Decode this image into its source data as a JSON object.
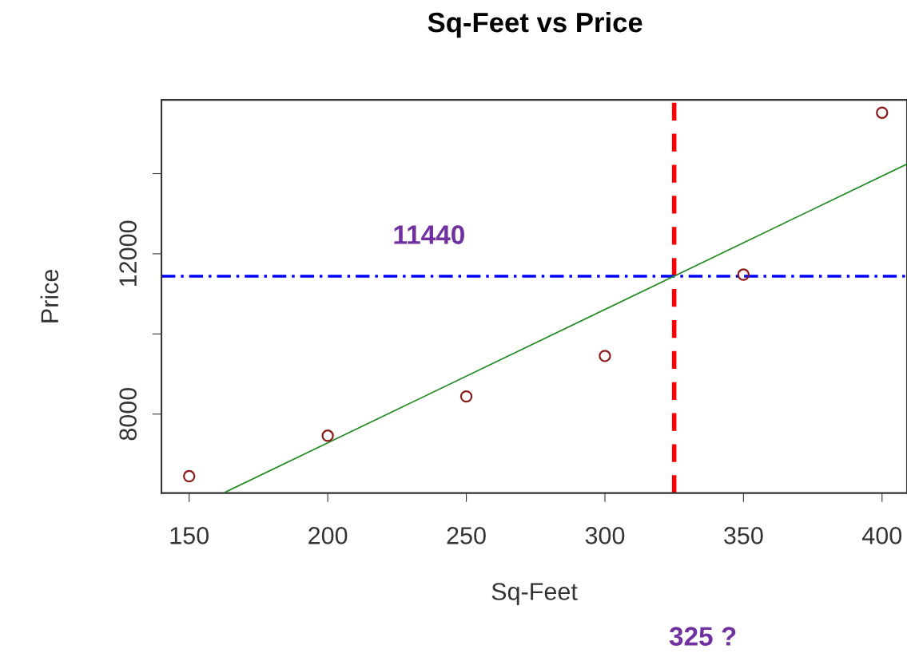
{
  "chart_data": {
    "type": "scatter",
    "title": "Sq-Feet vs Price",
    "xlabel": "Sq-Feet",
    "ylabel": "Price",
    "series": [
      {
        "color": "#8b1a1a",
        "marker": "circle",
        "x": [
          150,
          200,
          250,
          300,
          350,
          400
        ],
        "values": [
          6450,
          7460,
          8440,
          9450,
          11480,
          15520
        ]
      },
      {
        "type": "line",
        "color": "#228b22",
        "marker": "none",
        "line_style": "solid",
        "x": [
          163,
          409
        ],
        "values": [
          6050,
          14240
        ]
      }
    ],
    "ref_lines": [
      {
        "axis": "x",
        "value": 325,
        "color": "#ff0000",
        "line_style": "dashed"
      },
      {
        "axis": "y",
        "value": 11440,
        "color": "#0000ff",
        "line_style": "dashdot"
      }
    ],
    "annotations": [
      "11440",
      "325 ?"
    ],
    "xlim": [
      140,
      409
    ],
    "ylim": [
      6030,
      15840
    ],
    "xticks": [
      150,
      200,
      250,
      300,
      350,
      400
    ],
    "yticks": [
      8000,
      {
        "value": 10000,
        "label": null
      },
      12000,
      {
        "value": 14000,
        "label": null
      }
    ],
    "grid": false,
    "legend": false
  }
}
